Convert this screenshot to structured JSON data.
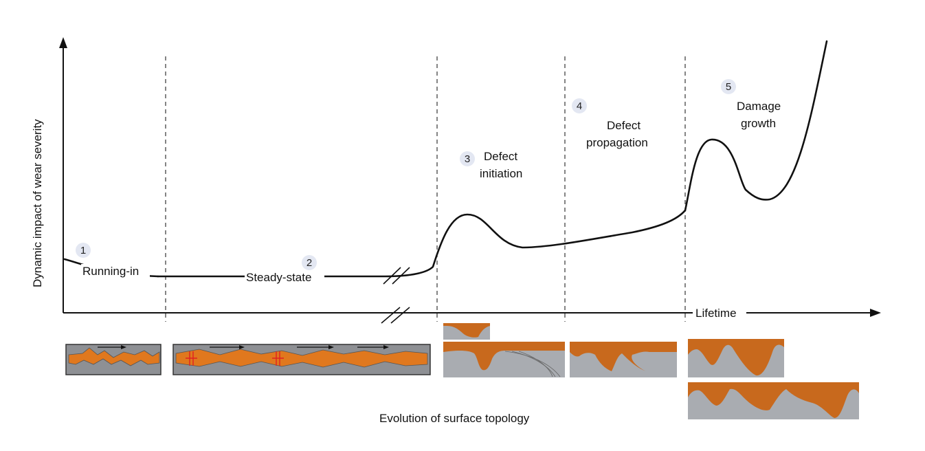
{
  "axes": {
    "y_label": "Dynamic impact of wear severity",
    "x_label": "Lifetime",
    "bottom_caption": "Evolution of surface topology"
  },
  "stages": [
    {
      "number": "1",
      "label": "Running-in"
    },
    {
      "number": "2",
      "label": "Steady-state"
    },
    {
      "number": "3",
      "label_line1": "Defect",
      "label_line2": "initiation"
    },
    {
      "number": "4",
      "label_line1": "Defect",
      "label_line2": "propagation"
    },
    {
      "number": "5",
      "label_line1": "Damage",
      "label_line2": "growth"
    }
  ],
  "colors": {
    "curve": "#111111",
    "badge": "#e3e7f2",
    "material_orange": "#c8691d",
    "substrate_gray": "#a9acb1"
  }
}
